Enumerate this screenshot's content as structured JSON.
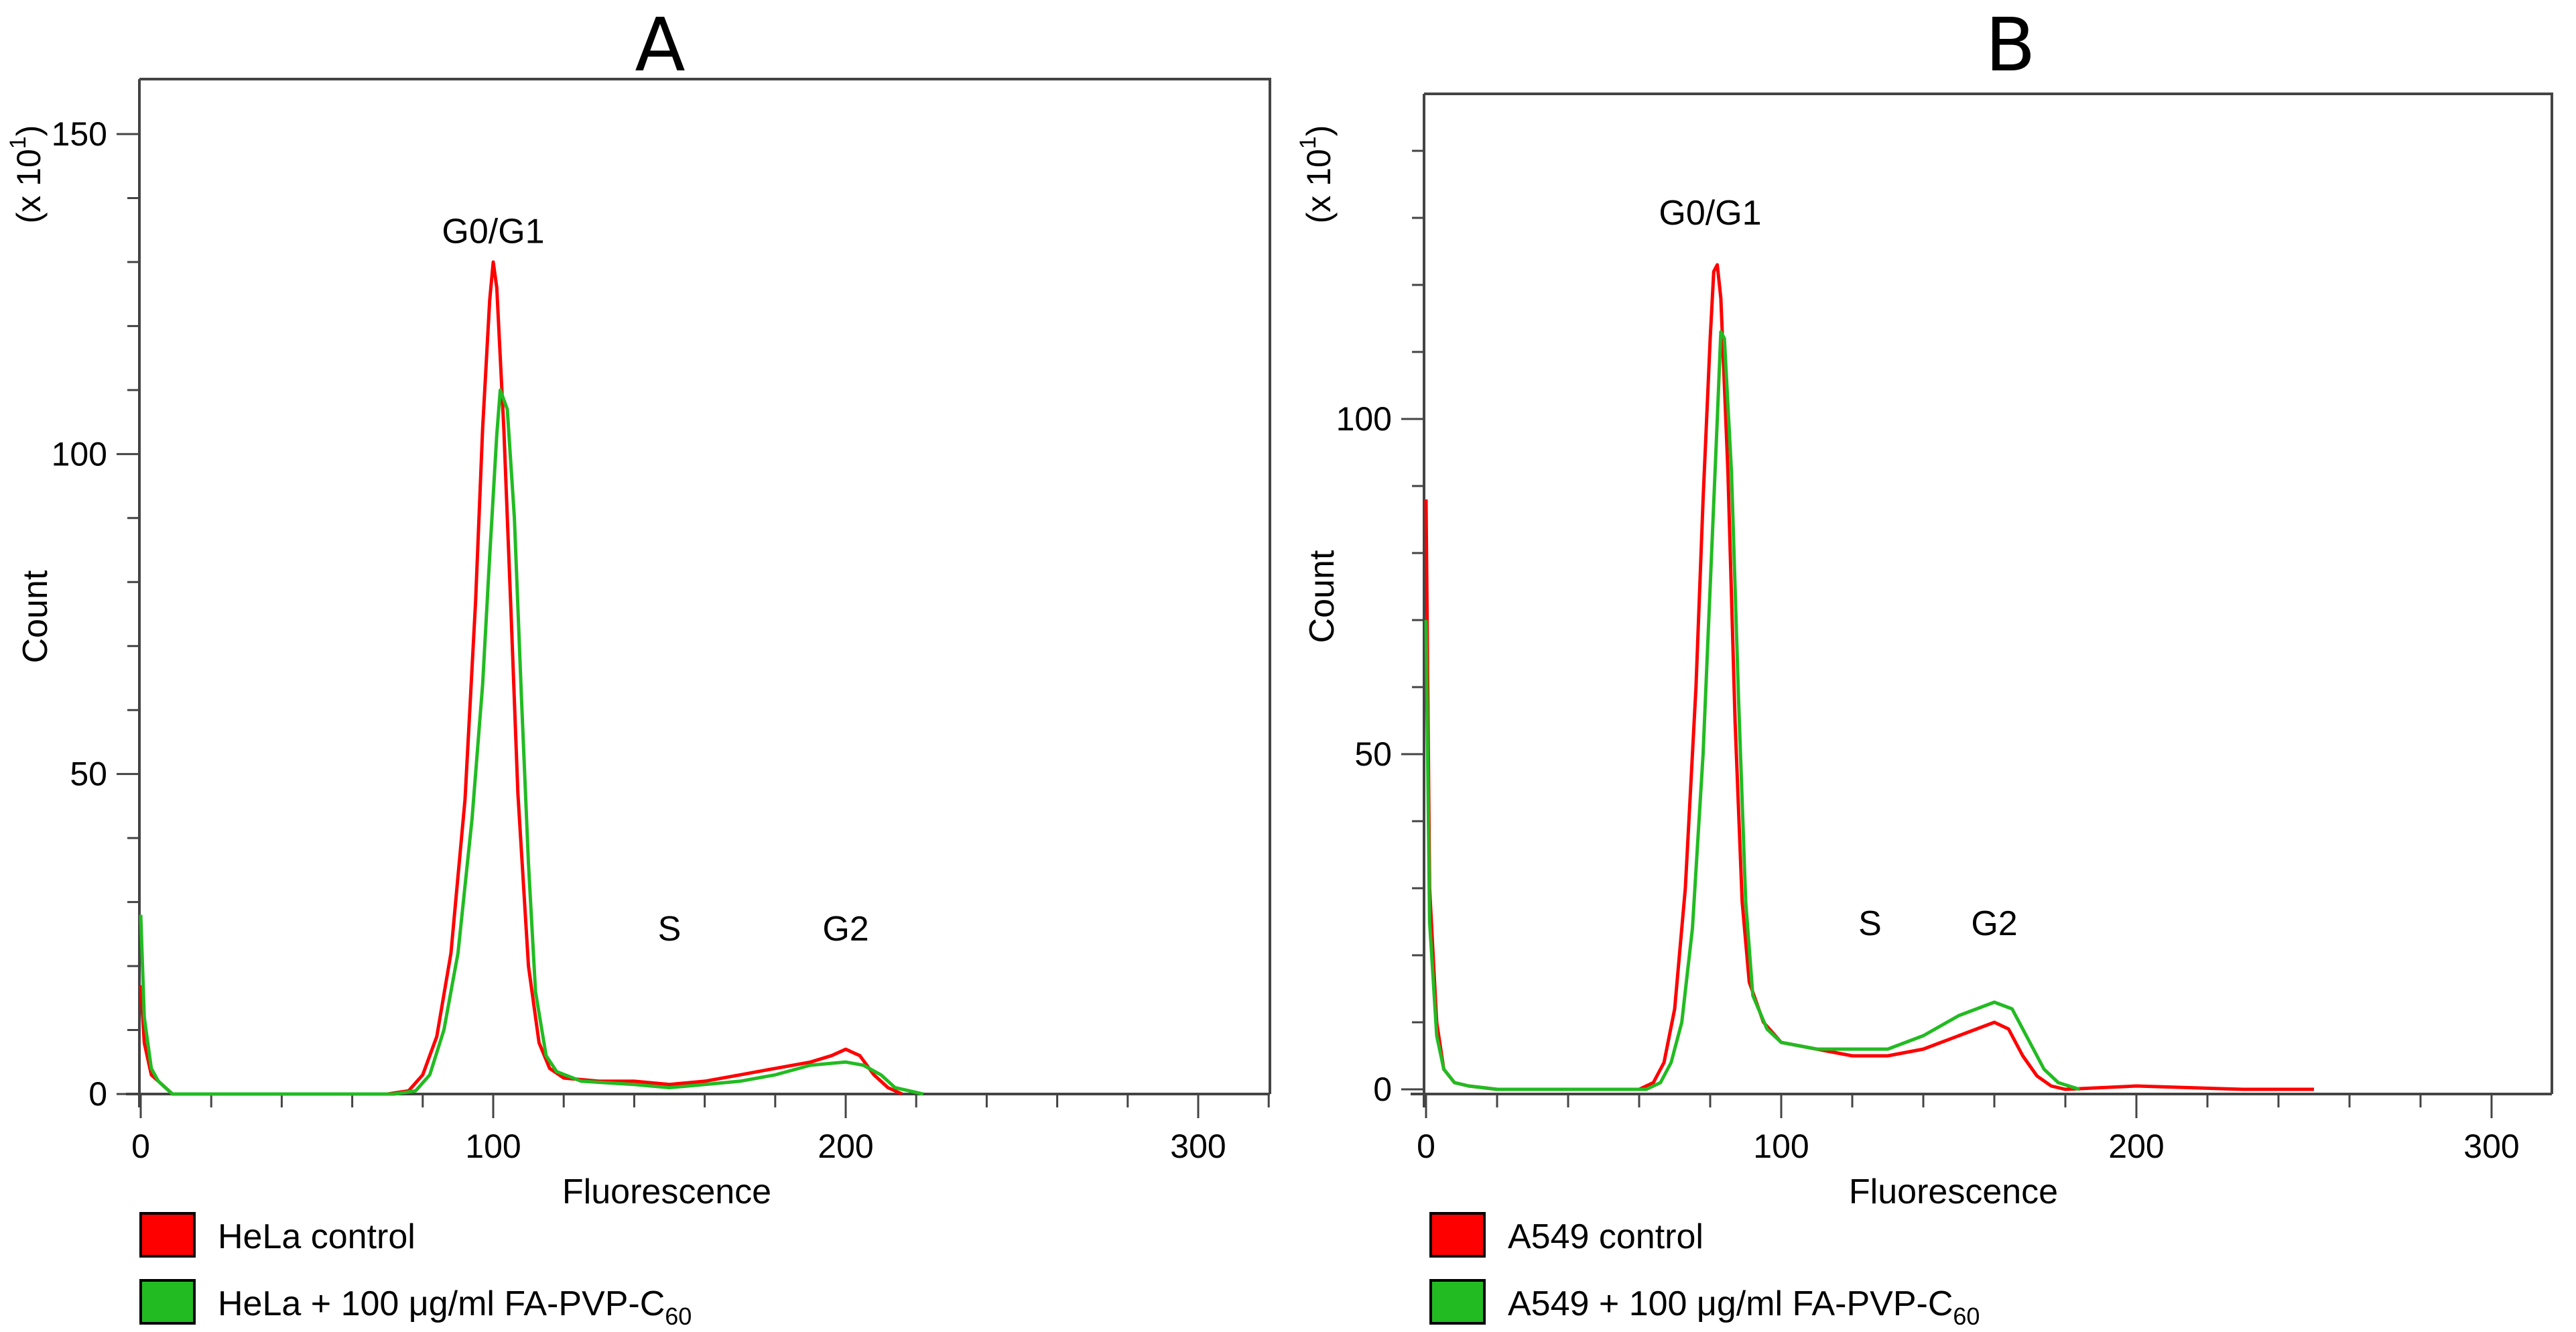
{
  "chart_data": [
    {
      "type": "line",
      "panel": "A",
      "xlabel": "Fluorescence",
      "ylabel": "Count",
      "y_multiplier": "(x 10",
      "y_multiplier_exp": "1",
      "y_multiplier_close": ")",
      "xlim": [
        0,
        320
      ],
      "ylim": [
        0,
        155
      ],
      "xticks": [
        0,
        100,
        200,
        300
      ],
      "yticks": [
        0,
        50,
        100,
        150
      ],
      "annotations": [
        {
          "text": "G0/G1",
          "x": 100,
          "y": 133
        },
        {
          "text": "S",
          "x": 150,
          "y": 24
        },
        {
          "text": "G2",
          "x": 200,
          "y": 24
        }
      ],
      "series": [
        {
          "name": "HeLa control",
          "color": "#ff0000",
          "points": [
            [
              0,
              17
            ],
            [
              1,
              8
            ],
            [
              3,
              3
            ],
            [
              5,
              2
            ],
            [
              7,
              1
            ],
            [
              9,
              0
            ],
            [
              70,
              0
            ],
            [
              76,
              0.5
            ],
            [
              80,
              3
            ],
            [
              84,
              9
            ],
            [
              88,
              22
            ],
            [
              92,
              46
            ],
            [
              95,
              77
            ],
            [
              97,
              104
            ],
            [
              99,
              124
            ],
            [
              100,
              130
            ],
            [
              101,
              126
            ],
            [
              103,
              104
            ],
            [
              105,
              76
            ],
            [
              107,
              47
            ],
            [
              110,
              20
            ],
            [
              113,
              8
            ],
            [
              116,
              4
            ],
            [
              120,
              2.5
            ],
            [
              130,
              2
            ],
            [
              140,
              2
            ],
            [
              150,
              1.5
            ],
            [
              160,
              2
            ],
            [
              170,
              3
            ],
            [
              180,
              4
            ],
            [
              190,
              5
            ],
            [
              196,
              6
            ],
            [
              200,
              7
            ],
            [
              204,
              6
            ],
            [
              208,
              3
            ],
            [
              212,
              1
            ],
            [
              216,
              0
            ]
          ]
        },
        {
          "name": "HeLa + 100 μg/ml FA-PVP-C",
          "legend_sub": "60",
          "color": "#22bb22",
          "points": [
            [
              0,
              28
            ],
            [
              1,
              12
            ],
            [
              3,
              4
            ],
            [
              5,
              2
            ],
            [
              7,
              1
            ],
            [
              9,
              0
            ],
            [
              72,
              0
            ],
            [
              78,
              0.5
            ],
            [
              82,
              3
            ],
            [
              86,
              10
            ],
            [
              90,
              22
            ],
            [
              94,
              43
            ],
            [
              97,
              64
            ],
            [
              99,
              84
            ],
            [
              101,
              103
            ],
            [
              102,
              110
            ],
            [
              104,
              107
            ],
            [
              106,
              90
            ],
            [
              108,
              62
            ],
            [
              110,
              36
            ],
            [
              112,
              16
            ],
            [
              115,
              6
            ],
            [
              118,
              3.5
            ],
            [
              125,
              2
            ],
            [
              140,
              1.5
            ],
            [
              150,
              1
            ],
            [
              160,
              1.5
            ],
            [
              170,
              2
            ],
            [
              180,
              3
            ],
            [
              190,
              4.5
            ],
            [
              200,
              5
            ],
            [
              205,
              4.5
            ],
            [
              210,
              3
            ],
            [
              214,
              1
            ],
            [
              218,
              0.5
            ],
            [
              222,
              0
            ]
          ]
        }
      ],
      "legend": [
        {
          "label": "HeLa control",
          "color": "#ff0000"
        },
        {
          "label": "HeLa + 100 μg/ml FA-PVP-C",
          "sub": "60",
          "color": "#22bb22"
        }
      ]
    },
    {
      "type": "line",
      "panel": "B",
      "xlabel": "Fluorescence",
      "ylabel": "Count",
      "y_multiplier": "(x 10",
      "y_multiplier_exp": "1",
      "y_multiplier_close": ")",
      "xlim": [
        0,
        320
      ],
      "ylim": [
        0,
        147
      ],
      "xticks": [
        0,
        100,
        200,
        300
      ],
      "yticks": [
        0,
        50,
        100
      ],
      "annotations": [
        {
          "text": "G0/G1",
          "x": 80,
          "y": 129
        },
        {
          "text": "S",
          "x": 125,
          "y": 23
        },
        {
          "text": "G2",
          "x": 160,
          "y": 23
        }
      ],
      "series": [
        {
          "name": "A549 control",
          "color": "#ff0000",
          "points": [
            [
              0,
              88
            ],
            [
              1,
              30
            ],
            [
              3,
              10
            ],
            [
              5,
              3
            ],
            [
              8,
              1
            ],
            [
              12,
              0.5
            ],
            [
              20,
              0
            ],
            [
              60,
              0
            ],
            [
              64,
              1
            ],
            [
              67,
              4
            ],
            [
              70,
              12
            ],
            [
              73,
              30
            ],
            [
              76,
              60
            ],
            [
              78,
              88
            ],
            [
              80,
              112
            ],
            [
              81,
              122
            ],
            [
              82,
              123
            ],
            [
              83,
              118
            ],
            [
              85,
              92
            ],
            [
              87,
              55
            ],
            [
              89,
              28
            ],
            [
              91,
              16
            ],
            [
              95,
              10
            ],
            [
              100,
              7
            ],
            [
              110,
              6
            ],
            [
              120,
              5
            ],
            [
              130,
              5
            ],
            [
              140,
              6
            ],
            [
              150,
              8
            ],
            [
              155,
              9
            ],
            [
              160,
              10
            ],
            [
              164,
              9
            ],
            [
              168,
              5
            ],
            [
              172,
              2
            ],
            [
              176,
              0.5
            ],
            [
              180,
              0
            ],
            [
              200,
              0.5
            ],
            [
              230,
              0
            ],
            [
              250,
              0
            ]
          ]
        },
        {
          "name": "A549 + 100 μg/ml FA-PVP-C",
          "legend_sub": "60",
          "color": "#22bb22",
          "points": [
            [
              0,
              70
            ],
            [
              1,
              25
            ],
            [
              3,
              8
            ],
            [
              5,
              3
            ],
            [
              8,
              1
            ],
            [
              12,
              0.5
            ],
            [
              20,
              0
            ],
            [
              62,
              0
            ],
            [
              66,
              1
            ],
            [
              69,
              4
            ],
            [
              72,
              10
            ],
            [
              75,
              24
            ],
            [
              78,
              50
            ],
            [
              80,
              75
            ],
            [
              82,
              100
            ],
            [
              83,
              113
            ],
            [
              84,
              112
            ],
            [
              86,
              92
            ],
            [
              88,
              58
            ],
            [
              90,
              28
            ],
            [
              92,
              14
            ],
            [
              96,
              9
            ],
            [
              100,
              7
            ],
            [
              110,
              6
            ],
            [
              120,
              6
            ],
            [
              130,
              6
            ],
            [
              140,
              8
            ],
            [
              150,
              11
            ],
            [
              155,
              12
            ],
            [
              160,
              13
            ],
            [
              165,
              12
            ],
            [
              170,
              7
            ],
            [
              174,
              3
            ],
            [
              178,
              1
            ],
            [
              184,
              0
            ]
          ]
        }
      ],
      "legend": [
        {
          "label": "A549 control",
          "color": "#ff0000"
        },
        {
          "label": "A549 + 100 μg/ml FA-PVP-C",
          "sub": "60",
          "color": "#22bb22"
        }
      ]
    }
  ]
}
